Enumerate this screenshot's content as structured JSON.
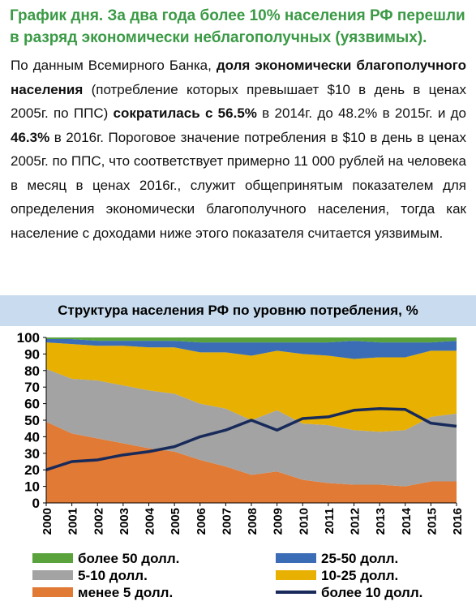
{
  "header": {
    "title": "График дня. За два года более 10% населения РФ перешли в разряд экономически неблагополучных (уязвимых)."
  },
  "paragraph": [
    {
      "text": "По данным Всемирного Банка, ",
      "bold": false
    },
    {
      "text": "доля экономически благополучного населения",
      "bold": true
    },
    {
      "text": " (потребление которых превышает $10 в день в ценах 2005г. по ППС) ",
      "bold": false
    },
    {
      "text": "сократилась с 56.5%",
      "bold": true
    },
    {
      "text": " в 2014г. до 48.2% в 2015г. и до ",
      "bold": false
    },
    {
      "text": "46.3%",
      "bold": true
    },
    {
      "text": " в 2016г. Пороговое значение потребления в $10 в день в ценах 2005г. по ППС, что соответствует примерно 11 000 рублей на человека в месяц в ценах 2016г., служит общепринятым показателем для определения экономически благополучного населения, тогда как население с доходами ниже этого показателя считается уязвимым.",
      "bold": false
    }
  ],
  "chart_data": {
    "type": "stacked-area",
    "title": "Структура населения РФ по уровню потребления, %",
    "categories": [
      "2000",
      "2001",
      "2002",
      "2003",
      "2004",
      "2005",
      "2006",
      "2007",
      "2008",
      "2009",
      "2010",
      "2011",
      "2012",
      "2013",
      "2014",
      "2015",
      "2016"
    ],
    "ylim": [
      0,
      100
    ],
    "yticks": [
      0,
      10,
      20,
      30,
      40,
      50,
      60,
      70,
      80,
      90,
      100
    ],
    "series": [
      {
        "name": "менее 5 долл.",
        "color": "#e07a35",
        "values": [
          49,
          42,
          39,
          36,
          33,
          31,
          26,
          22,
          17,
          19,
          14,
          12,
          11,
          11,
          10,
          13,
          13
        ]
      },
      {
        "name": "5-10 долл.",
        "color": "#a3a3a3",
        "values": [
          32,
          33,
          35,
          35,
          35,
          35,
          34,
          35,
          33,
          37,
          34,
          35,
          33,
          32,
          34,
          39,
          41
        ]
      },
      {
        "name": "10-25 долл.",
        "color": "#e8b000",
        "values": [
          16,
          21,
          21,
          24,
          26,
          28,
          31,
          34,
          39,
          36,
          42,
          42,
          43,
          45,
          44,
          40,
          38
        ]
      },
      {
        "name": "25-50 долл.",
        "color": "#3a6db5",
        "values": [
          2,
          3,
          3,
          3,
          4,
          4,
          6,
          6,
          8,
          5,
          7,
          8,
          11,
          9,
          9,
          5,
          6
        ]
      },
      {
        "name": "более 50 долл.",
        "color": "#5aa33c",
        "values": [
          1,
          1,
          2,
          2,
          2,
          2,
          3,
          3,
          3,
          3,
          3,
          3,
          2,
          3,
          3,
          3,
          2
        ]
      },
      {
        "name": "более 10 долл.",
        "color": "#172a5a",
        "type": "line",
        "values": [
          20,
          25,
          26,
          29,
          31,
          34,
          40,
          44,
          50,
          44,
          51,
          52,
          56,
          57,
          56.5,
          48.2,
          46.3
        ]
      }
    ]
  }
}
